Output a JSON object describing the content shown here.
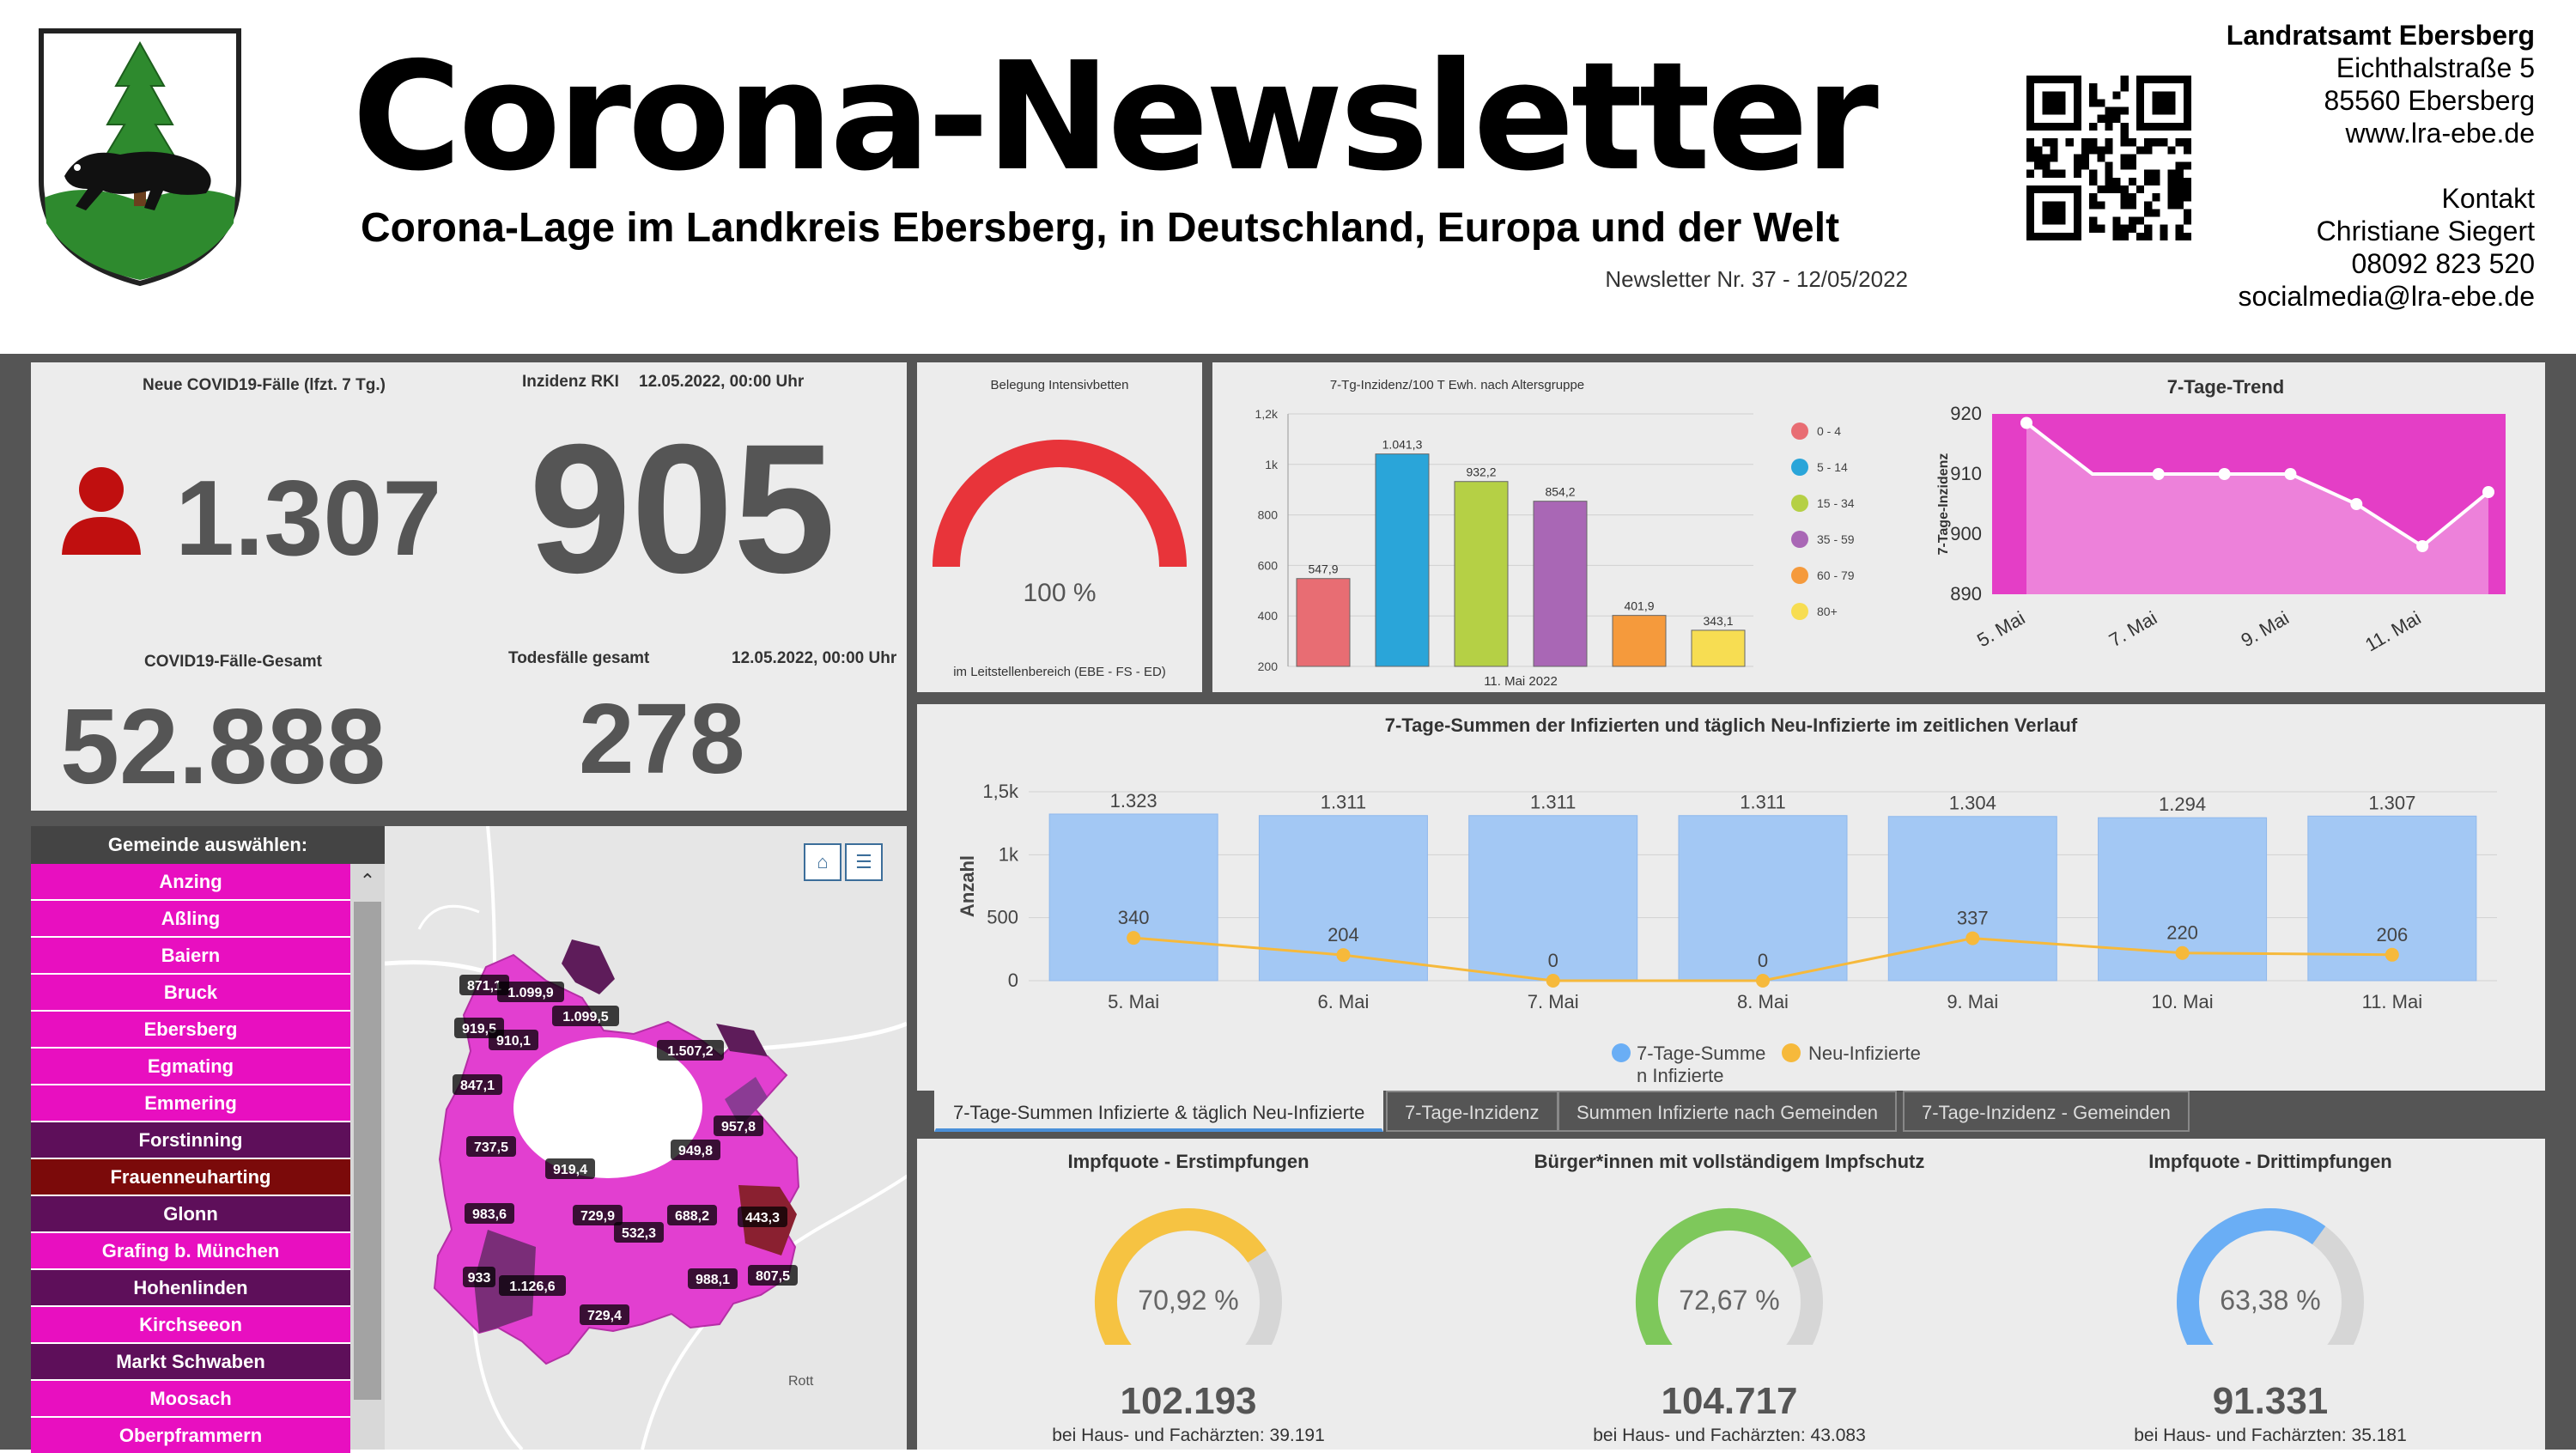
{
  "header": {
    "title": "Corona-Newsletter",
    "subtitle": "Corona-Lage im Landkreis Ebersberg, in Deutschland, Europa und der Welt",
    "issue": "Newsletter Nr. 37 - 12/05/2022"
  },
  "contact": {
    "org": "Landratsamt Ebersberg",
    "street": "Eichthalstraße 5",
    "city": "85560 Ebersberg",
    "web": "www.lra-ebe.de",
    "contact_label": "Kontakt",
    "name": "Christiane Siegert",
    "phone": "08092 823 520",
    "email": "socialmedia@lra-ebe.de"
  },
  "kpis": {
    "new_cases_label": "Neue COVID19-Fälle (lfzt. 7 Tg.)",
    "new_cases": "1.307",
    "incidence_label": "Inzidenz RKI",
    "incidence_date": "12.05.2022, 00:00 Uhr",
    "incidence": "905",
    "total_label": "COVID19-Fälle-Gesamt",
    "total": "52.888",
    "deaths_label": "Todesfälle gesamt",
    "deaths_date": "12.05.2022, 00:00 Uhr",
    "deaths": "278"
  },
  "icu": {
    "title": "Belegung Intensivbetten",
    "value_label": "100 %",
    "value": 100,
    "footer": "im Leitstellenbereich (EBE - FS - ED)",
    "color": "#e8343a"
  },
  "vaccination": [
    {
      "title": "Impfquote  - Erstimpfungen",
      "percent_label": "70,92 %",
      "percent": 70.92,
      "count": "102.193",
      "sub": "bei Haus- und Fachärzten: 39.191",
      "color": "#f6c342"
    },
    {
      "title": "Bürger*innen mit vollständigem Impfschutz",
      "percent_label": "72,67 %",
      "percent": 72.67,
      "count": "104.717",
      "sub": "bei Haus- und Fachärzten: 43.083",
      "color": "#7ec85b"
    },
    {
      "title": "Impfquote  - Drittimpfungen",
      "percent_label": "63,38 %",
      "percent": 63.38,
      "count": "91.331",
      "sub": "bei Haus- und Fachärzten: 35.181",
      "color": "#6aaef5"
    }
  ],
  "municipalities": {
    "header": "Gemeinde auswählen:",
    "items": [
      {
        "name": "Anzing",
        "color": "#e80fc0"
      },
      {
        "name": "Aßling",
        "color": "#e80fc0"
      },
      {
        "name": "Baiern",
        "color": "#e80fc0"
      },
      {
        "name": "Bruck",
        "color": "#e80fc0"
      },
      {
        "name": "Ebersberg",
        "color": "#e80fc0"
      },
      {
        "name": "Egmating",
        "color": "#e80fc0"
      },
      {
        "name": "Emmering",
        "color": "#e80fc0"
      },
      {
        "name": "Forstinning",
        "color": "#5e0f5a"
      },
      {
        "name": "Frauenneuharting",
        "color": "#7b0a0a"
      },
      {
        "name": "Glonn",
        "color": "#5e0f5a"
      },
      {
        "name": "Grafing b. München",
        "color": "#e80fc0"
      },
      {
        "name": "Hohenlinden",
        "color": "#5e0f5a"
      },
      {
        "name": "Kirchseeon",
        "color": "#e80fc0"
      },
      {
        "name": "Markt Schwaben",
        "color": "#5e0f5a"
      },
      {
        "name": "Moosach",
        "color": "#e80fc0"
      },
      {
        "name": "Oberpframmern",
        "color": "#e80fc0"
      }
    ]
  },
  "map": {
    "place_labels": [
      "Rott"
    ],
    "home_icon": "home-icon",
    "legend_icon": "list-icon",
    "labels": [
      "871,1",
      "1.099,9",
      "1.099,5",
      "919,5",
      "910,1",
      "1.507,2",
      "847,1",
      "957,8",
      "737,5",
      "949,8",
      "919,4",
      "983,6",
      "729,9",
      "532,3",
      "688,2",
      "443,3",
      "933",
      "1.126,6",
      "988,1",
      "807,5",
      "729,4"
    ]
  },
  "tabs": [
    "7-Tage-Summen Infizierte & täglich Neu-Infizierte",
    "7-Tage-Inzidenz",
    "Summen Infizierte nach Gemeinden",
    "7-Tage-Inzidenz - Gemeinden"
  ],
  "chart_data": [
    {
      "type": "bar",
      "title": "7-Tg-Inzidenz/100 T Ewh. nach Altersgruppe",
      "xlabel": "11. Mai 2022",
      "ylim": [
        200,
        1200
      ],
      "yticks": [
        "200",
        "400",
        "600",
        "800",
        "1k",
        "1,2k"
      ],
      "categories": [
        "0 - 4",
        "5 - 14",
        "15 - 34",
        "35 - 59",
        "60 - 79",
        "80+"
      ],
      "values": [
        547.9,
        1041.3,
        932.2,
        854.2,
        401.9,
        343.1
      ],
      "value_labels": [
        "547,9",
        "1.041,3",
        "932,2",
        "854,2",
        "401,9",
        "343,1"
      ],
      "colors": [
        "#e86d73",
        "#2aa5d9",
        "#b5d045",
        "#a967b5",
        "#f59a3c",
        "#f7dd52"
      ],
      "legend": "right"
    },
    {
      "type": "area",
      "title": "7-Tage-Trend",
      "ylabel": "7-Tage-Inzidenz",
      "ylim": [
        890,
        920
      ],
      "yticks": [
        890,
        900,
        910,
        920
      ],
      "x": [
        "5. Mai",
        "6. Mai",
        "7. Mai",
        "8. Mai",
        "9. Mai",
        "10. Mai",
        "11. Mai",
        "12. Mai"
      ],
      "xtick_labels": [
        "5. Mai",
        "7. Mai",
        "9. Mai",
        "11. Mai"
      ],
      "values": [
        918.5,
        910,
        910,
        910,
        910,
        905,
        898,
        907
      ],
      "background": "#e43ec6"
    },
    {
      "type": "bar",
      "title": "7-Tage-Summen der Infizierten und täglich Neu-Infizierte im zeitlichen Verlauf",
      "ylabel": "Anzahl",
      "ylim": [
        0,
        1500
      ],
      "yticks": [
        "0",
        "500",
        "1k",
        "1,5k"
      ],
      "categories": [
        "5. Mai",
        "6. Mai",
        "7. Mai",
        "8. Mai",
        "9. Mai",
        "10. Mai",
        "11. Mai"
      ],
      "series": [
        {
          "name": "7-Tage-Summe n Infizierte",
          "type": "bar",
          "values": [
            1323,
            1311,
            1311,
            1311,
            1304,
            1294,
            1307
          ],
          "labels": [
            "1.323",
            "1.311",
            "1.311",
            "1.311",
            "1.304",
            "1.294",
            "1.307"
          ],
          "color": "#a3c8f4"
        },
        {
          "name": "Neu-Infizierte",
          "type": "line",
          "values": [
            340,
            204,
            0,
            0,
            337,
            220,
            206
          ],
          "labels": [
            "340",
            "204",
            "0",
            "0",
            "337",
            "220",
            "206"
          ],
          "color": "#f6b93b"
        }
      ],
      "legend_labels": [
        "7-Tage-Summe",
        "n Infizierte",
        "Neu-Infizierte"
      ],
      "legend": "bottom"
    }
  ]
}
